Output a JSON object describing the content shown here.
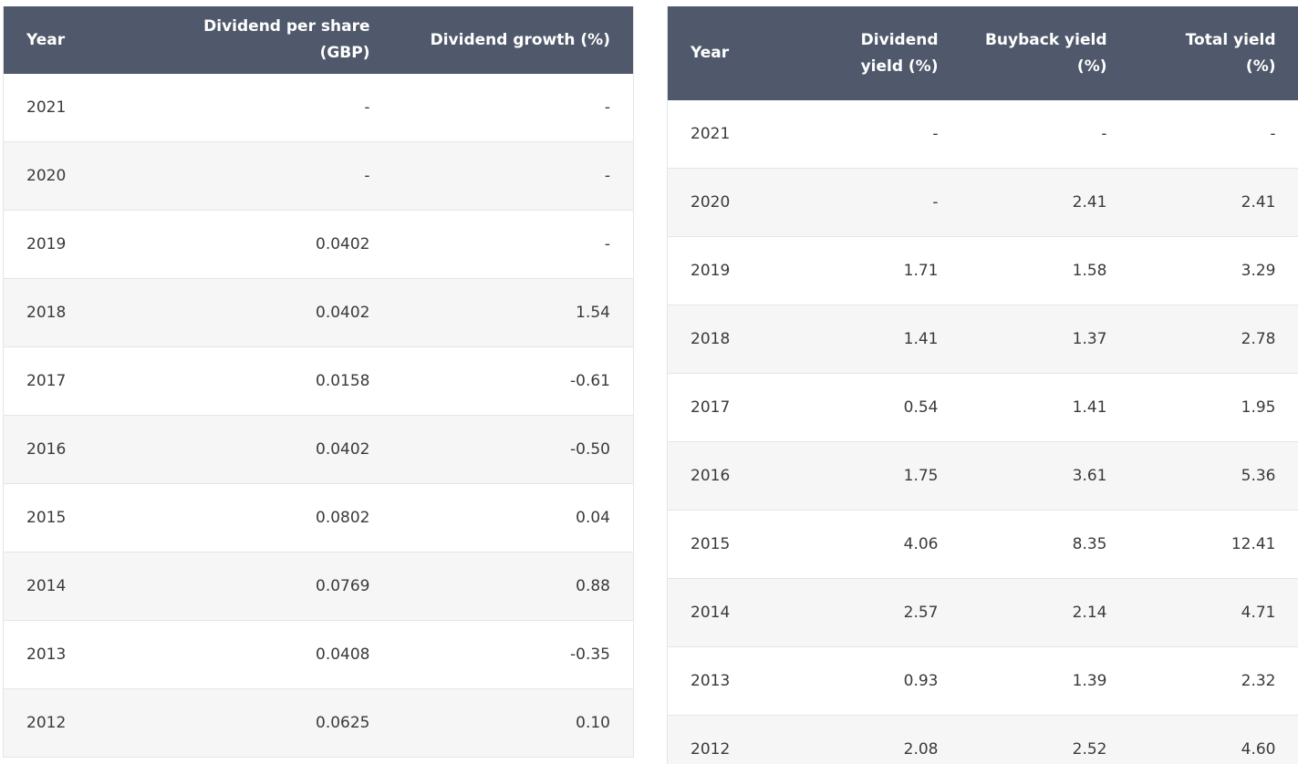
{
  "dividend_table": {
    "headers": [
      "Year",
      "Dividend per share (GBP)",
      "Dividend growth (%)"
    ],
    "rows": [
      [
        "2021",
        "-",
        "-"
      ],
      [
        "2020",
        "-",
        "-"
      ],
      [
        "2019",
        "0.0402",
        "-"
      ],
      [
        "2018",
        "0.0402",
        "1.54"
      ],
      [
        "2017",
        "0.0158",
        "-0.61"
      ],
      [
        "2016",
        "0.0402",
        "-0.50"
      ],
      [
        "2015",
        "0.0802",
        "0.04"
      ],
      [
        "2014",
        "0.0769",
        "0.88"
      ],
      [
        "2013",
        "0.0408",
        "-0.35"
      ],
      [
        "2012",
        "0.0625",
        "0.10"
      ]
    ]
  },
  "yield_table": {
    "headers": [
      "Year",
      "Dividend yield (%)",
      "Buyback yield (%)",
      "Total yield (%)"
    ],
    "rows": [
      [
        "2021",
        "-",
        "-",
        "-"
      ],
      [
        "2020",
        "-",
        "2.41",
        "2.41"
      ],
      [
        "2019",
        "1.71",
        "1.58",
        "3.29"
      ],
      [
        "2018",
        "1.41",
        "1.37",
        "2.78"
      ],
      [
        "2017",
        "0.54",
        "1.41",
        "1.95"
      ],
      [
        "2016",
        "1.75",
        "3.61",
        "5.36"
      ],
      [
        "2015",
        "4.06",
        "8.35",
        "12.41"
      ],
      [
        "2014",
        "2.57",
        "2.14",
        "4.71"
      ],
      [
        "2013",
        "0.93",
        "1.39",
        "2.32"
      ],
      [
        "2012",
        "2.08",
        "2.52",
        "4.60"
      ]
    ]
  }
}
